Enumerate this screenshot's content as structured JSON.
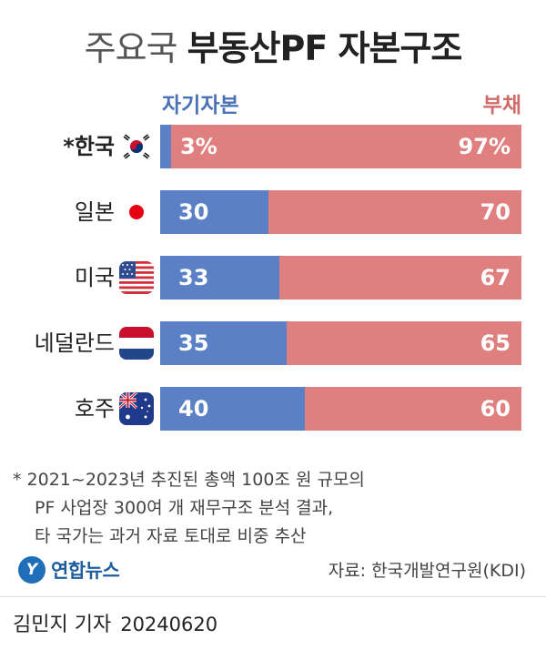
{
  "title_prefix": "주요국",
  "title_main": "부동산PF 자본구조",
  "legend": {
    "equity": "자기자본",
    "debt": "부채"
  },
  "chart_data": {
    "type": "bar",
    "stacked": true,
    "orientation": "horizontal",
    "title": "주요국 부동산PF 자본구조",
    "categories": [
      "*한국",
      "일본",
      "미국",
      "네덜란드",
      "호주"
    ],
    "series": [
      {
        "name": "자기자본",
        "values": [
          3,
          30,
          33,
          35,
          40
        ],
        "labels": [
          "3%",
          "30",
          "33",
          "35",
          "40"
        ],
        "color": "#5b80c5"
      },
      {
        "name": "부채",
        "values": [
          97,
          70,
          67,
          65,
          60
        ],
        "labels": [
          "97%",
          "70",
          "67",
          "65",
          "60"
        ],
        "color": "#e07f7f"
      }
    ],
    "xlim": [
      0,
      100
    ],
    "unit": "%",
    "legend_position": "top"
  },
  "flags": [
    "korea-flag-icon",
    "japan-flag-icon",
    "usa-flag-icon",
    "netherlands-flag-icon",
    "australia-flag-icon"
  ],
  "note": {
    "line1": "* 2021~2023년 추진된 총액 100조 원 규모의",
    "line2": "PF 사업장 300여 개 재무구조 분석 결과,",
    "line3": "타 국가는 과거 자료 토대로 비중 추산"
  },
  "logo": {
    "mark": "Y",
    "text": "연합뉴스"
  },
  "source": "자료: 한국개발연구원(KDI)",
  "byline": {
    "author": "김민지 기자",
    "date": "20240620"
  }
}
